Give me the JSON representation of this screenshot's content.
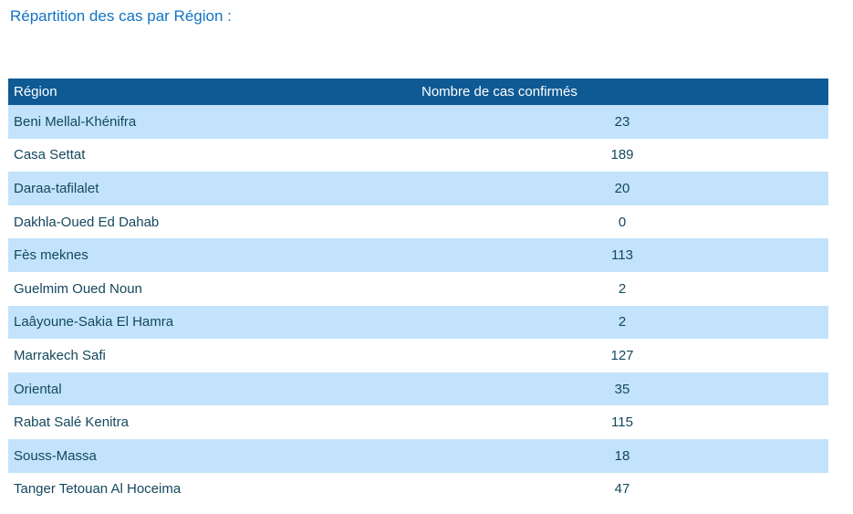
{
  "title": "Répartition des cas par Région :",
  "table": {
    "columns": [
      {
        "label": "Région"
      },
      {
        "label": "Nombre de cas confirmés"
      }
    ],
    "rows": [
      {
        "region": "Beni Mellal-Khénifra",
        "cases": "23"
      },
      {
        "region": "Casa Settat",
        "cases": "189"
      },
      {
        "region": "Daraa-tafilalet",
        "cases": "20"
      },
      {
        "region": "Dakhla-Oued Ed Dahab",
        "cases": "0"
      },
      {
        "region": "Fès meknes",
        "cases": "113"
      },
      {
        "region": "Guelmim Oued Noun",
        "cases": "2"
      },
      {
        "region": "Laâyoune-Sakia El Hamra",
        "cases": "2"
      },
      {
        "region": "Marrakech Safi",
        "cases": "127"
      },
      {
        "region": "Oriental",
        "cases": "35"
      },
      {
        "region": "Rabat Salé Kenitra",
        "cases": "115"
      },
      {
        "region": "Souss-Massa",
        "cases": "18"
      },
      {
        "region": "Tanger Tetouan Al Hoceima",
        "cases": "47"
      }
    ]
  },
  "colors": {
    "title_text": "#1273C4",
    "header_bg": "#0F5A94",
    "header_text": "#FFFFFF",
    "row_alt_bg": "#C2E3FB",
    "row_text": "#14485E"
  },
  "chart_data": {
    "type": "table",
    "title": "Répartition des cas par Région :",
    "columns": [
      "Région",
      "Nombre de cas confirmés"
    ],
    "categories": [
      "Beni Mellal-Khénifra",
      "Casa Settat",
      "Daraa-tafilalet",
      "Dakhla-Oued Ed Dahab",
      "Fès meknes",
      "Guelmim Oued Noun",
      "Laâyoune-Sakia El Hamra",
      "Marrakech Safi",
      "Oriental",
      "Rabat Salé Kenitra",
      "Souss-Massa",
      "Tanger Tetouan Al Hoceima"
    ],
    "values": [
      23,
      189,
      20,
      0,
      113,
      2,
      2,
      127,
      35,
      115,
      18,
      47
    ]
  }
}
